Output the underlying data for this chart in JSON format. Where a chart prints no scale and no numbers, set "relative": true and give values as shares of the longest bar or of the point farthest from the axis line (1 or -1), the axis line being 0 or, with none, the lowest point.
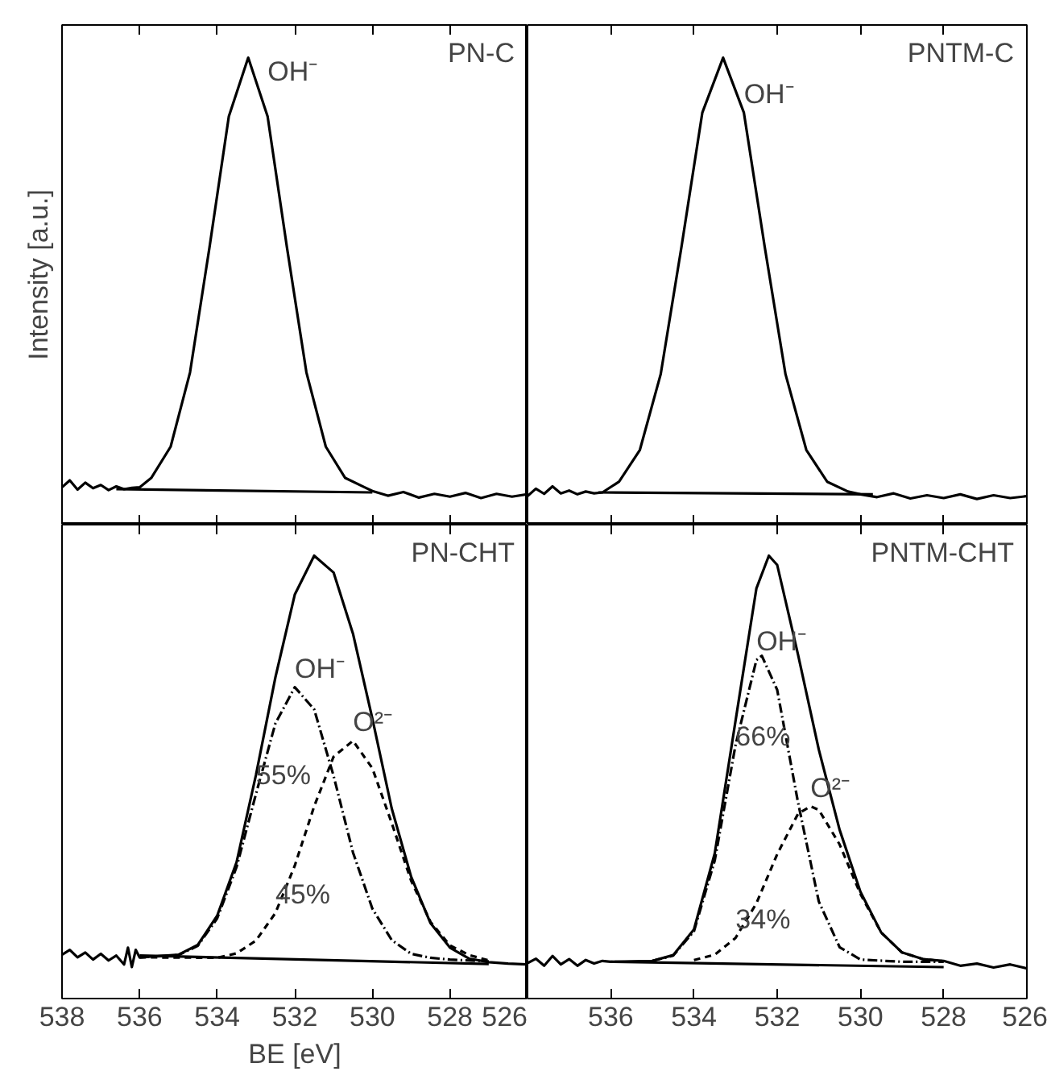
{
  "chart_data": [
    {
      "type": "line",
      "title": "PN-C",
      "ylabel": "Intensity [a.u.]",
      "relative": true,
      "xlim": [
        538,
        526
      ],
      "xticks": [
        538,
        536,
        534,
        532,
        530,
        528,
        526
      ],
      "tick_labels": false,
      "annotations": [
        {
          "text": "OH⁻",
          "x": 532.7,
          "y": 0.93
        }
      ],
      "series": [
        {
          "color": "#000000",
          "line_style": "solid",
          "x": [
            538,
            537.8,
            537.6,
            537.4,
            537.2,
            537,
            536.8,
            536.6,
            536.4,
            536.2,
            536,
            535.7,
            535.2,
            534.7,
            534.2,
            533.7,
            533.2,
            532.7,
            532.2,
            531.7,
            531.2,
            530.7,
            530.2,
            530,
            529.6,
            529.2,
            528.8,
            528.4,
            528,
            527.6,
            527.2,
            526.8,
            526.4,
            526
          ],
          "values": [
            0.08,
            0.095,
            0.075,
            0.09,
            0.078,
            0.085,
            0.074,
            0.082,
            0.076,
            0.079,
            0.08,
            0.1,
            0.167,
            0.326,
            0.593,
            0.874,
            1.0,
            0.874,
            0.593,
            0.326,
            0.167,
            0.1,
            0.08,
            0.072,
            0.062,
            0.07,
            0.058,
            0.066,
            0.06,
            0.068,
            0.057,
            0.066,
            0.06,
            0.065
          ]
        },
        {
          "color": "#000000",
          "line_style": "solid",
          "x": [
            536.6,
            530
          ],
          "values": [
            0.076,
            0.069
          ]
        }
      ]
    },
    {
      "type": "line",
      "title": "PNTM-C",
      "relative": true,
      "xlim": [
        538,
        526
      ],
      "xticks": [
        538,
        536,
        534,
        532,
        530,
        528,
        526
      ],
      "tick_labels": false,
      "annotations": [
        {
          "text": "OH⁻",
          "x": 532.8,
          "y": 0.882
        }
      ],
      "series": [
        {
          "color": "#000000",
          "line_style": "solid",
          "x": [
            538,
            537.8,
            537.6,
            537.4,
            537.2,
            537,
            536.8,
            536.6,
            536.4,
            536.2,
            535.8,
            535.3,
            534.8,
            534.3,
            533.8,
            533.3,
            532.8,
            532.3,
            531.8,
            531.3,
            530.8,
            530.3,
            530,
            529.6,
            529.2,
            528.8,
            528.4,
            528,
            527.6,
            527.2,
            526.8,
            526.4,
            526
          ],
          "values": [
            0.061,
            0.077,
            0.066,
            0.082,
            0.067,
            0.073,
            0.065,
            0.071,
            0.067,
            0.069,
            0.092,
            0.16,
            0.322,
            0.595,
            0.882,
            1.0,
            0.882,
            0.595,
            0.322,
            0.16,
            0.092,
            0.071,
            0.065,
            0.059,
            0.067,
            0.056,
            0.063,
            0.057,
            0.065,
            0.055,
            0.063,
            0.057,
            0.061
          ]
        },
        {
          "color": "#000000",
          "line_style": "solid",
          "x": [
            536.3,
            529.7
          ],
          "values": [
            0.069,
            0.065
          ]
        }
      ]
    },
    {
      "type": "line",
      "title": "PN-CHT",
      "xlabel": "BE [eV]",
      "relative": true,
      "xlim": [
        538,
        526
      ],
      "xticks": [
        538,
        536,
        534,
        532,
        530,
        528,
        526
      ],
      "tick_labels": "x",
      "annotations": [
        {
          "text": "OH⁻",
          "x": 532.0,
          "y": 0.703
        },
        {
          "text": "O²⁻",
          "x": 530.5,
          "y": 0.582
        },
        {
          "text": "55%",
          "x": 533.0,
          "y": 0.462
        },
        {
          "text": "45%",
          "x": 532.5,
          "y": 0.193
        }
      ],
      "series": [
        {
          "color": "#000000",
          "line_style": "solid",
          "x": [
            538,
            537.8,
            537.6,
            537.4,
            537.2,
            537,
            536.8,
            536.6,
            536.4,
            536.3,
            536.2,
            536.1,
            536,
            535.5,
            535,
            534.5,
            534,
            533.5,
            533,
            532.5,
            532,
            531.5,
            531,
            530.5,
            530,
            529.5,
            529,
            528.5,
            528,
            527.5,
            527,
            526.5,
            526
          ],
          "values": [
            0.099,
            0.11,
            0.093,
            0.104,
            0.088,
            0.101,
            0.086,
            0.097,
            0.077,
            0.115,
            0.071,
            0.11,
            0.093,
            0.096,
            0.099,
            0.121,
            0.187,
            0.308,
            0.505,
            0.725,
            0.912,
            1.0,
            0.962,
            0.824,
            0.632,
            0.429,
            0.275,
            0.17,
            0.115,
            0.09,
            0.082,
            0.079,
            0.077
          ]
        },
        {
          "color": "#000000",
          "line_style": "dashdot",
          "x": [
            536,
            535,
            534.5,
            534,
            533.5,
            533,
            532.5,
            532,
            531.5,
            531,
            530.5,
            530,
            529.5,
            529,
            528.5,
            528,
            527
          ],
          "values": [
            0.093,
            0.098,
            0.119,
            0.181,
            0.297,
            0.462,
            0.621,
            0.703,
            0.653,
            0.503,
            0.33,
            0.203,
            0.132,
            0.101,
            0.092,
            0.088,
            0.084
          ]
        },
        {
          "color": "#000000",
          "line_style": "dashed",
          "x": [
            536,
            534,
            533.5,
            533,
            532.5,
            532,
            531.5,
            531,
            530.5,
            530,
            529.5,
            529,
            528.5,
            528,
            527.5,
            527
          ],
          "values": [
            0.093,
            0.092,
            0.102,
            0.131,
            0.193,
            0.3,
            0.434,
            0.546,
            0.582,
            0.52,
            0.396,
            0.266,
            0.173,
            0.12,
            0.098,
            0.086
          ]
        },
        {
          "color": "#000000",
          "line_style": "solid",
          "x": [
            536,
            527
          ],
          "values": [
            0.097,
            0.078
          ]
        }
      ]
    },
    {
      "type": "line",
      "title": "PNTM-CHT",
      "relative": true,
      "xlim": [
        538,
        526
      ],
      "xticks": [
        {
          "value": 538,
          "label": null
        },
        536,
        534,
        532,
        530,
        528,
        526
      ],
      "tick_labels": "x",
      "annotations": [
        {
          "text": "OH⁻",
          "x": 532.5,
          "y": 0.764
        },
        {
          "text": "O²⁻",
          "x": 531.2,
          "y": 0.434
        },
        {
          "text": "66%",
          "x": 533.0,
          "y": 0.55
        },
        {
          "text": "34%",
          "x": 533.0,
          "y": 0.137
        }
      ],
      "series": [
        {
          "color": "#000000",
          "line_style": "solid",
          "x": [
            538,
            537.8,
            537.6,
            537.4,
            537.2,
            537,
            536.8,
            536.6,
            536.4,
            536.2,
            536,
            535.5,
            535,
            534.5,
            534,
            533.5,
            533,
            532.5,
            532.2,
            532,
            531.5,
            531,
            530.5,
            530,
            529.5,
            529,
            528.5,
            528,
            527.6,
            527.2,
            526.8,
            526.4,
            526
          ],
          "values": [
            0.08,
            0.09,
            0.074,
            0.096,
            0.077,
            0.089,
            0.074,
            0.087,
            0.079,
            0.085,
            0.083,
            0.084,
            0.085,
            0.098,
            0.156,
            0.328,
            0.628,
            0.926,
            1.0,
            0.979,
            0.777,
            0.562,
            0.381,
            0.241,
            0.149,
            0.104,
            0.089,
            0.085,
            0.074,
            0.079,
            0.07,
            0.077,
            0.068
          ]
        },
        {
          "color": "#000000",
          "line_style": "dashdot",
          "x": [
            535,
            534.5,
            534,
            533.5,
            533,
            532.5,
            532.37,
            532,
            531.5,
            531,
            530.5,
            530,
            529,
            528
          ],
          "values": [
            0.085,
            0.097,
            0.152,
            0.312,
            0.573,
            0.764,
            0.774,
            0.697,
            0.443,
            0.219,
            0.116,
            0.088,
            0.083,
            0.083
          ]
        },
        {
          "color": "#000000",
          "line_style": "dashed",
          "x": [
            534,
            533.5,
            533,
            532.5,
            532,
            531.5,
            531.2,
            531,
            530.5,
            530,
            529.5,
            529,
            528.5,
            528
          ],
          "values": [
            0.087,
            0.099,
            0.137,
            0.215,
            0.326,
            0.417,
            0.434,
            0.426,
            0.348,
            0.236,
            0.149,
            0.104,
            0.089,
            0.084
          ]
        },
        {
          "color": "#000000",
          "line_style": "solid",
          "x": [
            536,
            528
          ],
          "values": [
            0.083,
            0.071
          ]
        }
      ]
    }
  ]
}
